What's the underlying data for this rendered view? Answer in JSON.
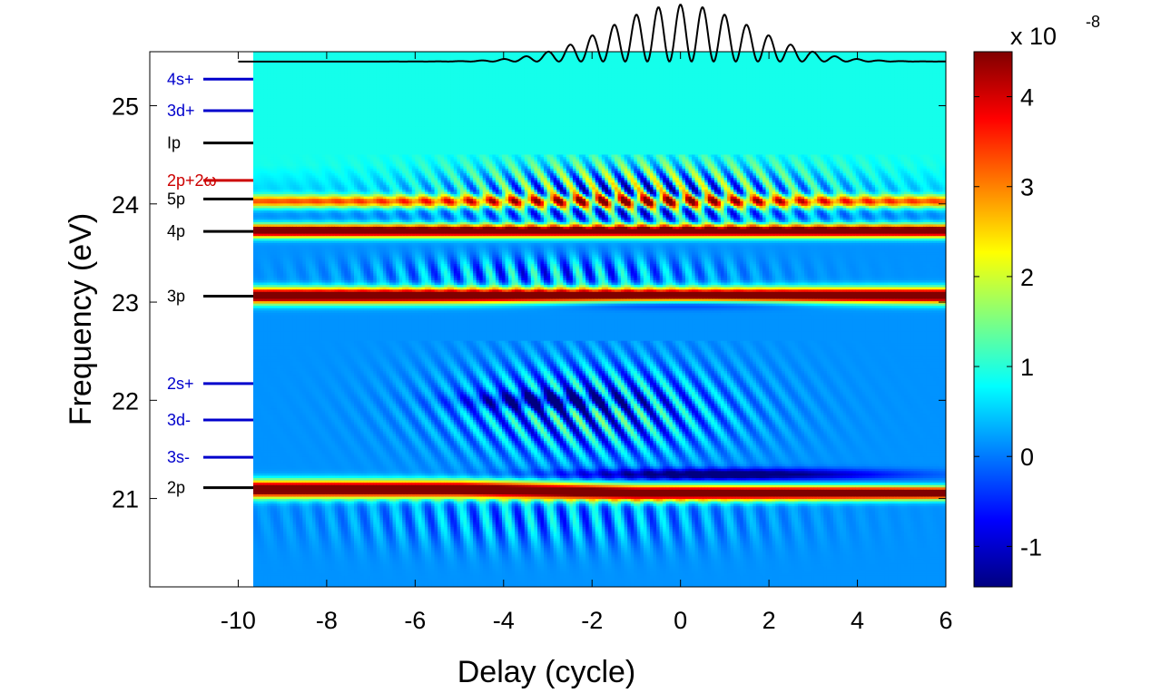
{
  "chart_data": {
    "type": "heatmap",
    "title": "",
    "xlabel": "Delay (cycle)",
    "ylabel": "Frequency (eV)",
    "xlim": [
      -12,
      6
    ],
    "ylim": [
      20.1,
      25.55
    ],
    "data_x_range": [
      -10,
      6
    ],
    "x_ticks": [
      {
        "value": -10,
        "label": "-10"
      },
      {
        "value": -8,
        "label": "-8"
      },
      {
        "value": -6,
        "label": "-6"
      },
      {
        "value": -4,
        "label": "-4"
      },
      {
        "value": -2,
        "label": "-2"
      },
      {
        "value": 0,
        "label": "0"
      },
      {
        "value": 2,
        "label": "2"
      },
      {
        "value": 4,
        "label": "4"
      },
      {
        "value": 6,
        "label": "6"
      }
    ],
    "y_ticks": [
      {
        "value": 21,
        "label": "21"
      },
      {
        "value": 22,
        "label": "22"
      },
      {
        "value": 23,
        "label": "23"
      },
      {
        "value": 24,
        "label": "24"
      },
      {
        "value": 25,
        "label": "25"
      }
    ],
    "colorbar": {
      "colormap": "jet",
      "range": [
        -1.45,
        4.5
      ],
      "multiplier_label": "x 10",
      "multiplier_exponent": "-8",
      "ticks": [
        {
          "value": -1,
          "label": "-1"
        },
        {
          "value": 0,
          "label": "0"
        },
        {
          "value": 1,
          "label": "1"
        },
        {
          "value": 2,
          "label": "2"
        },
        {
          "value": 3,
          "label": "3"
        },
        {
          "value": 4,
          "label": "4"
        }
      ]
    },
    "levels": [
      {
        "label": "4s+",
        "energy": 25.27,
        "color": "#0000cc"
      },
      {
        "label": "3d+",
        "energy": 24.95,
        "color": "#0000cc"
      },
      {
        "label": "Ip",
        "energy": 24.62,
        "color": "#000000"
      },
      {
        "label": "2p+2ω",
        "energy": 24.24,
        "color": "#cc0000"
      },
      {
        "label": "5p",
        "energy": 24.05,
        "color": "#000000"
      },
      {
        "label": "4p",
        "energy": 23.72,
        "color": "#000000"
      },
      {
        "label": "3p",
        "energy": 23.06,
        "color": "#000000"
      },
      {
        "label": "2s+",
        "energy": 22.17,
        "color": "#0000cc"
      },
      {
        "label": "3d-",
        "energy": 21.8,
        "color": "#0000cc"
      },
      {
        "label": "3s-",
        "energy": 21.42,
        "color": "#0000cc"
      },
      {
        "label": "2p",
        "energy": 21.11,
        "color": "#000000"
      }
    ],
    "bands": [
      {
        "name": "2p",
        "energy": 21.1,
        "intensity": 4.5
      },
      {
        "name": "3p",
        "energy": 23.07,
        "intensity": 4.5
      },
      {
        "name": "4p",
        "energy": 23.73,
        "intensity": 4.5
      },
      {
        "name": "5p",
        "energy": 24.03,
        "intensity": 2.5
      }
    ],
    "pulse_envelope": {
      "baseline_energy": 25.45,
      "center_delay": 0,
      "peak_amplitude_eV": 0.58,
      "period_cycles": 0.5
    }
  }
}
